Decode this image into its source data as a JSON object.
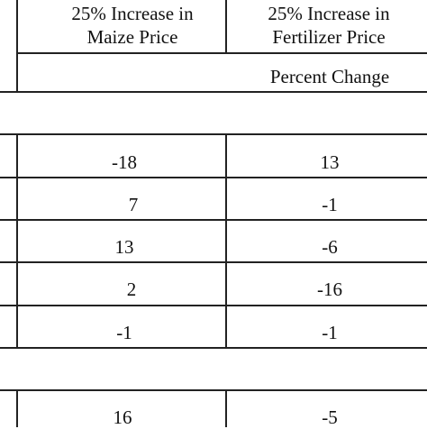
{
  "table": {
    "headers": [
      {
        "line1": "25% Increase in",
        "line2": "Maize Price"
      },
      {
        "line1": "25% Increase in",
        "line2": "Fertilizer Price"
      }
    ],
    "units_label": "Percent Change",
    "rows": [
      [
        "-18",
        "13"
      ],
      [
        "7",
        "-1"
      ],
      [
        "13",
        "-6"
      ],
      [
        "2",
        "-16"
      ],
      [
        "-1",
        "-1"
      ],
      [
        "16",
        "-5"
      ]
    ]
  }
}
